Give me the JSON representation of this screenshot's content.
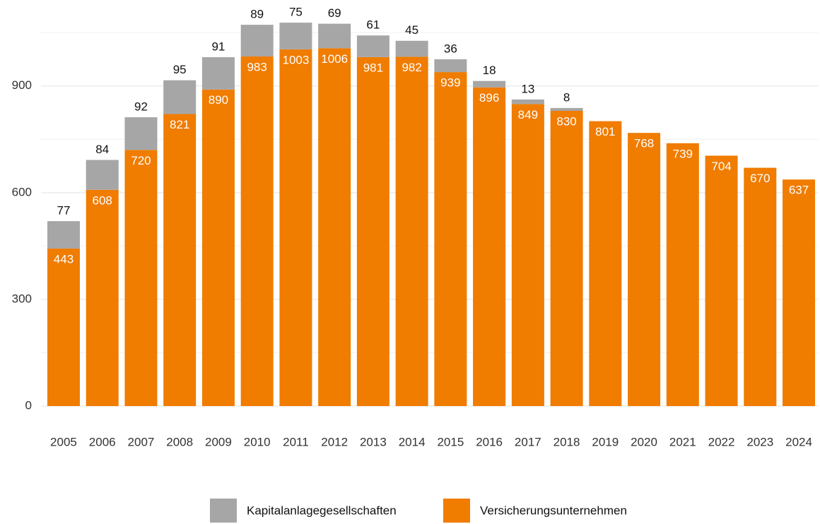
{
  "chart_data": {
    "type": "stacked_bar",
    "categories": [
      "2005",
      "2006",
      "2007",
      "2008",
      "2009",
      "2010",
      "2011",
      "2012",
      "2013",
      "2014",
      "2015",
      "2016",
      "2017",
      "2018",
      "2019",
      "2020",
      "2021",
      "2022",
      "2023",
      "2024"
    ],
    "series": [
      {
        "name": "Versicherungsunternehmen",
        "color": "#f07c00",
        "values": [
          443,
          608,
          720,
          821,
          890,
          983,
          1003,
          1006,
          981,
          982,
          939,
          896,
          849,
          830,
          801,
          768,
          739,
          704,
          670,
          637
        ]
      },
      {
        "name": "Kapitalanlagegesellschaften",
        "color": "#a6a6a6",
        "values": [
          77,
          84,
          92,
          95,
          91,
          89,
          75,
          69,
          61,
          45,
          36,
          18,
          13,
          8,
          null,
          null,
          null,
          null,
          null,
          null
        ]
      }
    ],
    "ylim": [
      0,
      1100
    ],
    "yticks": [
      0,
      300,
      600,
      900
    ],
    "minor_yticks": [
      150,
      450,
      750,
      1050
    ],
    "grid": true,
    "legend": "bottom"
  }
}
